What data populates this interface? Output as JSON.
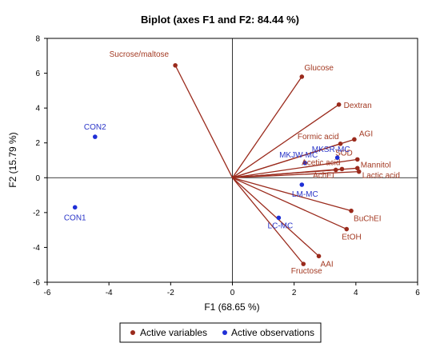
{
  "chart_data": {
    "type": "scatter",
    "title": "Biplot (axes F1 and F2: 84.44 %)",
    "xlabel": "F1 (68.65 %)",
    "ylabel": "F2 (15.79 %)",
    "xlim": [
      -6,
      6
    ],
    "ylim": [
      -6,
      8
    ],
    "x_ticks": [
      "-6",
      "-4",
      "-2",
      "0",
      "2",
      "4",
      "6"
    ],
    "y_ticks": [
      "-6",
      "-4",
      "-2",
      "0",
      "2",
      "4",
      "6",
      "8"
    ],
    "grid": false,
    "legend_position": "bottom",
    "series": [
      {
        "name": "Active variables",
        "color": "#9a2a1c",
        "points": [
          {
            "label": "Sucrose/maltose",
            "x": -1.85,
            "y": 6.45
          },
          {
            "label": "Glucose",
            "x": 2.25,
            "y": 5.8
          },
          {
            "label": "Dextran",
            "x": 3.45,
            "y": 4.2
          },
          {
            "label": "AGI",
            "x": 3.95,
            "y": 2.2
          },
          {
            "label": "Formic acid",
            "x": 3.5,
            "y": 1.95
          },
          {
            "label": "SOD",
            "x": 4.05,
            "y": 1.05
          },
          {
            "label": "Mannitol",
            "x": 4.05,
            "y": 0.55
          },
          {
            "label": "Lactic acid",
            "x": 4.1,
            "y": 0.35
          },
          {
            "label": "Acetic acid",
            "x": 3.55,
            "y": 0.5
          },
          {
            "label": "AchEI",
            "x": 3.35,
            "y": 0.45
          },
          {
            "label": "BuChEI",
            "x": 3.85,
            "y": -1.9
          },
          {
            "label": "EtOH",
            "x": 3.7,
            "y": -2.95
          },
          {
            "label": "AAI",
            "x": 2.8,
            "y": -4.5
          },
          {
            "label": "Fructose",
            "x": 2.3,
            "y": -4.95
          }
        ]
      },
      {
        "name": "Active observations",
        "color": "#1f2fd6",
        "points": [
          {
            "label": "CON2",
            "x": -4.45,
            "y": 2.35
          },
          {
            "label": "CON1",
            "x": -5.1,
            "y": -1.7
          },
          {
            "label": "MKJW-MC",
            "x": 2.35,
            "y": 0.85
          },
          {
            "label": "MKSR-MC",
            "x": 3.4,
            "y": 1.15
          },
          {
            "label": "LM-MC",
            "x": 2.25,
            "y": -0.4
          },
          {
            "label": "LC-MC",
            "x": 1.5,
            "y": -2.3
          }
        ]
      }
    ]
  }
}
